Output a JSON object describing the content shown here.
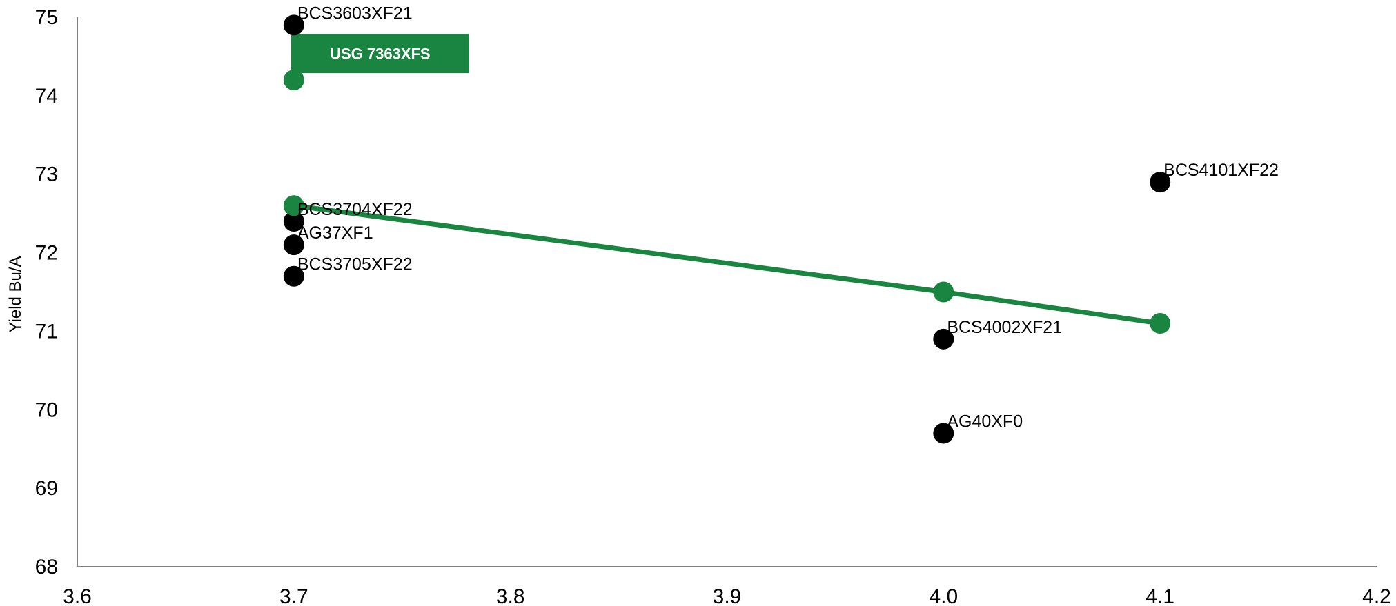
{
  "chart_data": {
    "type": "scatter",
    "title": "",
    "xlabel": "",
    "ylabel": "Yield Bu/A",
    "xlim": [
      3.6,
      4.2
    ],
    "ylim": [
      68,
      75
    ],
    "x_ticks": [
      "3.6",
      "3.7",
      "3.8",
      "3.9",
      "4.0",
      "4.1",
      "4.2"
    ],
    "y_ticks": [
      "68",
      "69",
      "70",
      "71",
      "72",
      "73",
      "74",
      "75"
    ],
    "grid": false,
    "series": [
      {
        "color": "#000000",
        "marker": "circle",
        "points": [
          {
            "label": "BCS3603XF21",
            "x": 3.7,
            "y": 74.9
          },
          {
            "label": "BCS3704XF22",
            "x": 3.7,
            "y": 72.4
          },
          {
            "label": "AG37XF1",
            "x": 3.7,
            "y": 72.1
          },
          {
            "label": "BCS3705XF22",
            "x": 3.7,
            "y": 71.7
          },
          {
            "label": "BCS4101XF22",
            "x": 4.1,
            "y": 72.9
          },
          {
            "label": "BCS4002XF21",
            "x": 4.0,
            "y": 70.9
          },
          {
            "label": "AG40XF0",
            "x": 4.0,
            "y": 69.7
          }
        ]
      },
      {
        "color": "#1a8540",
        "marker": "circle",
        "points": [
          {
            "x": 3.7,
            "y": 74.2
          },
          {
            "x": 3.7,
            "y": 72.6
          },
          {
            "x": 4.0,
            "y": 71.5
          },
          {
            "x": 4.1,
            "y": 71.1
          }
        ]
      }
    ],
    "trendline": {
      "color": "#1a8540",
      "points": [
        {
          "x": 3.7,
          "y": 72.6
        },
        {
          "x": 4.0,
          "y": 71.5
        },
        {
          "x": 4.1,
          "y": 71.1
        }
      ]
    },
    "callout": {
      "text": "USG 7363XFS",
      "background": "#1a8540",
      "text_color": "#ffffff",
      "anchor": {
        "x": 3.7,
        "y": 74.2
      }
    }
  }
}
